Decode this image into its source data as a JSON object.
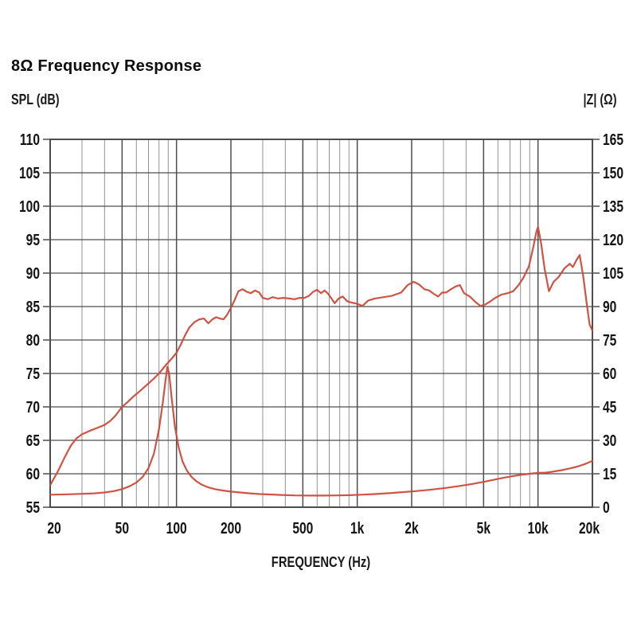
{
  "title": "8Ω Frequency Response",
  "chart_data": {
    "type": "line",
    "title": "8Ω Frequency Response",
    "xlabel": "FREQUENCY (Hz)",
    "x_scale": "log",
    "x_range": [
      20,
      20000
    ],
    "grid": true,
    "legend": "none",
    "y_left": {
      "label": "SPL (dB)",
      "range": [
        55,
        110
      ],
      "ticks": [
        110,
        105,
        100,
        95,
        90,
        85,
        80,
        75,
        70,
        65,
        60,
        55
      ]
    },
    "y_right": {
      "label": "|Z| (Ω)",
      "range": [
        0,
        165
      ],
      "ticks": [
        165,
        150,
        135,
        120,
        105,
        90,
        75,
        60,
        45,
        30,
        15,
        0
      ]
    },
    "x_ticks": [
      {
        "v": 20,
        "label": "20"
      },
      {
        "v": 50,
        "label": "50"
      },
      {
        "v": 100,
        "label": "100"
      },
      {
        "v": 200,
        "label": "200"
      },
      {
        "v": 500,
        "label": "500"
      },
      {
        "v": 1000,
        "label": "1k"
      },
      {
        "v": 2000,
        "label": "2k"
      },
      {
        "v": 5000,
        "label": "5k"
      },
      {
        "v": 10000,
        "label": "10k"
      },
      {
        "v": 20000,
        "label": "20k"
      }
    ],
    "x_minor_ticks": [
      30,
      40,
      60,
      70,
      80,
      90,
      300,
      400,
      600,
      700,
      800,
      900,
      3000,
      4000,
      6000,
      7000,
      8000,
      9000
    ],
    "colors": {
      "curve": "#cd4a3b",
      "grid_major": "#4d4d4d",
      "grid_minor": "#929292",
      "text": "#141414"
    },
    "series": [
      {
        "name": "SPL",
        "axis": "left",
        "points": [
          [
            20,
            58.3
          ],
          [
            22,
            60.3
          ],
          [
            24,
            62.4
          ],
          [
            26,
            64.2
          ],
          [
            28,
            65.3
          ],
          [
            30,
            65.9
          ],
          [
            33,
            66.4
          ],
          [
            36,
            66.8
          ],
          [
            40,
            67.3
          ],
          [
            43,
            67.9
          ],
          [
            46,
            68.7
          ],
          [
            50,
            70.0
          ],
          [
            54,
            70.8
          ],
          [
            58,
            71.6
          ],
          [
            63,
            72.4
          ],
          [
            68,
            73.2
          ],
          [
            74,
            74.1
          ],
          [
            80,
            75.0
          ],
          [
            87,
            76.2
          ],
          [
            94,
            77.2
          ],
          [
            100,
            78.1
          ],
          [
            106,
            79.4
          ],
          [
            112,
            80.8
          ],
          [
            118,
            81.9
          ],
          [
            126,
            82.7
          ],
          [
            134,
            83.1
          ],
          [
            142,
            83.2
          ],
          [
            150,
            82.5
          ],
          [
            158,
            83.1
          ],
          [
            166,
            83.4
          ],
          [
            174,
            83.2
          ],
          [
            182,
            83.1
          ],
          [
            190,
            83.7
          ],
          [
            200,
            84.8
          ],
          [
            210,
            86.0
          ],
          [
            220,
            87.3
          ],
          [
            232,
            87.6
          ],
          [
            245,
            87.2
          ],
          [
            258,
            87.0
          ],
          [
            272,
            87.4
          ],
          [
            287,
            87.1
          ],
          [
            300,
            86.3
          ],
          [
            320,
            86.1
          ],
          [
            340,
            86.4
          ],
          [
            365,
            86.2
          ],
          [
            390,
            86.3
          ],
          [
            420,
            86.2
          ],
          [
            450,
            86.1
          ],
          [
            480,
            86.3
          ],
          [
            510,
            86.3
          ],
          [
            540,
            86.6
          ],
          [
            570,
            87.2
          ],
          [
            600,
            87.5
          ],
          [
            630,
            87.0
          ],
          [
            660,
            87.4
          ],
          [
            690,
            86.9
          ],
          [
            720,
            86.2
          ],
          [
            750,
            85.5
          ],
          [
            790,
            86.2
          ],
          [
            830,
            86.5
          ],
          [
            880,
            85.8
          ],
          [
            930,
            85.6
          ],
          [
            1000,
            85.4
          ],
          [
            1070,
            85.1
          ],
          [
            1150,
            85.9
          ],
          [
            1250,
            86.2
          ],
          [
            1400,
            86.4
          ],
          [
            1550,
            86.6
          ],
          [
            1750,
            87.1
          ],
          [
            1900,
            88.2
          ],
          [
            2050,
            88.7
          ],
          [
            2200,
            88.3
          ],
          [
            2350,
            87.6
          ],
          [
            2500,
            87.4
          ],
          [
            2650,
            86.9
          ],
          [
            2800,
            86.5
          ],
          [
            2950,
            87.1
          ],
          [
            3100,
            87.1
          ],
          [
            3300,
            87.6
          ],
          [
            3500,
            88.0
          ],
          [
            3700,
            88.2
          ],
          [
            3900,
            87.0
          ],
          [
            4200,
            86.5
          ],
          [
            4500,
            85.7
          ],
          [
            4800,
            85.1
          ],
          [
            5100,
            85.3
          ],
          [
            5400,
            85.7
          ],
          [
            5800,
            86.3
          ],
          [
            6300,
            86.8
          ],
          [
            6800,
            87.0
          ],
          [
            7300,
            87.3
          ],
          [
            7800,
            88.2
          ],
          [
            8300,
            89.3
          ],
          [
            8900,
            91.0
          ],
          [
            9400,
            93.8
          ],
          [
            9800,
            96.2
          ],
          [
            10000,
            96.9
          ],
          [
            10400,
            94.5
          ],
          [
            10900,
            90.5
          ],
          [
            11500,
            87.3
          ],
          [
            12200,
            88.7
          ],
          [
            13000,
            89.4
          ],
          [
            14000,
            90.7
          ],
          [
            15000,
            91.4
          ],
          [
            15600,
            90.9
          ],
          [
            16300,
            91.9
          ],
          [
            17000,
            92.7
          ],
          [
            17800,
            89.5
          ],
          [
            18600,
            85.5
          ],
          [
            19300,
            82.3
          ],
          [
            20000,
            81.4
          ]
        ]
      },
      {
        "name": "Impedance",
        "axis": "right",
        "points": [
          [
            20,
            5.6
          ],
          [
            25,
            5.8
          ],
          [
            30,
            6.0
          ],
          [
            35,
            6.2
          ],
          [
            40,
            6.6
          ],
          [
            45,
            7.2
          ],
          [
            50,
            8.1
          ],
          [
            55,
            9.4
          ],
          [
            60,
            11.1
          ],
          [
            65,
            13.6
          ],
          [
            70,
            17.5
          ],
          [
            75,
            24.0
          ],
          [
            80,
            35.0
          ],
          [
            84,
            47.0
          ],
          [
            87,
            57.0
          ],
          [
            89,
            63.0
          ],
          [
            91,
            60.0
          ],
          [
            94,
            49.0
          ],
          [
            98,
            36.0
          ],
          [
            103,
            26.5
          ],
          [
            108,
            20.5
          ],
          [
            114,
            16.5
          ],
          [
            121,
            13.6
          ],
          [
            129,
            11.6
          ],
          [
            138,
            10.1
          ],
          [
            150,
            8.9
          ],
          [
            163,
            8.1
          ],
          [
            180,
            7.5
          ],
          [
            200,
            7.0
          ],
          [
            225,
            6.6
          ],
          [
            255,
            6.2
          ],
          [
            290,
            5.9
          ],
          [
            330,
            5.7
          ],
          [
            380,
            5.5
          ],
          [
            450,
            5.3
          ],
          [
            550,
            5.2
          ],
          [
            650,
            5.2
          ],
          [
            780,
            5.3
          ],
          [
            900,
            5.4
          ],
          [
            1050,
            5.6
          ],
          [
            1250,
            5.9
          ],
          [
            1500,
            6.3
          ],
          [
            1800,
            6.8
          ],
          [
            2100,
            7.2
          ],
          [
            2500,
            7.8
          ],
          [
            3000,
            8.5
          ],
          [
            3600,
            9.4
          ],
          [
            4300,
            10.4
          ],
          [
            5100,
            11.5
          ],
          [
            6000,
            12.7
          ],
          [
            7000,
            13.7
          ],
          [
            8000,
            14.5
          ],
          [
            9000,
            15.0
          ],
          [
            10000,
            15.4
          ],
          [
            11000,
            15.5
          ],
          [
            12000,
            15.9
          ],
          [
            13500,
            16.6
          ],
          [
            15000,
            17.4
          ],
          [
            16500,
            18.2
          ],
          [
            18000,
            19.2
          ],
          [
            19000,
            20.0
          ],
          [
            20000,
            20.8
          ]
        ]
      }
    ]
  }
}
